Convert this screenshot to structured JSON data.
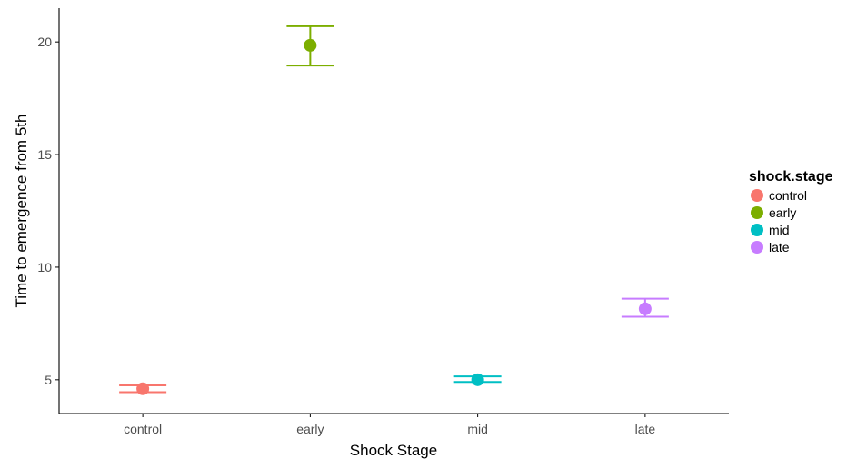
{
  "chart_data": {
    "type": "scatter",
    "xlabel": "Shock Stage",
    "ylabel": "Time to emergence from 5th",
    "categories": [
      "control",
      "early",
      "mid",
      "late"
    ],
    "ylim": [
      3.5,
      21.5
    ],
    "yticks": [
      5,
      10,
      15,
      20
    ],
    "grid": false,
    "legend_position": "right",
    "legend_title": "shock.stage",
    "points": [
      {
        "category": "control",
        "y": 4.6,
        "ymin": 4.45,
        "ymax": 4.75,
        "color": "#F8766D"
      },
      {
        "category": "early",
        "y": 19.85,
        "ymin": 18.95,
        "ymax": 20.7,
        "color": "#7CAE00"
      },
      {
        "category": "mid",
        "y": 5.0,
        "ymin": 4.9,
        "ymax": 5.15,
        "color": "#00BFC4"
      },
      {
        "category": "late",
        "y": 8.15,
        "ymin": 7.8,
        "ymax": 8.6,
        "color": "#C77CFF"
      }
    ]
  }
}
